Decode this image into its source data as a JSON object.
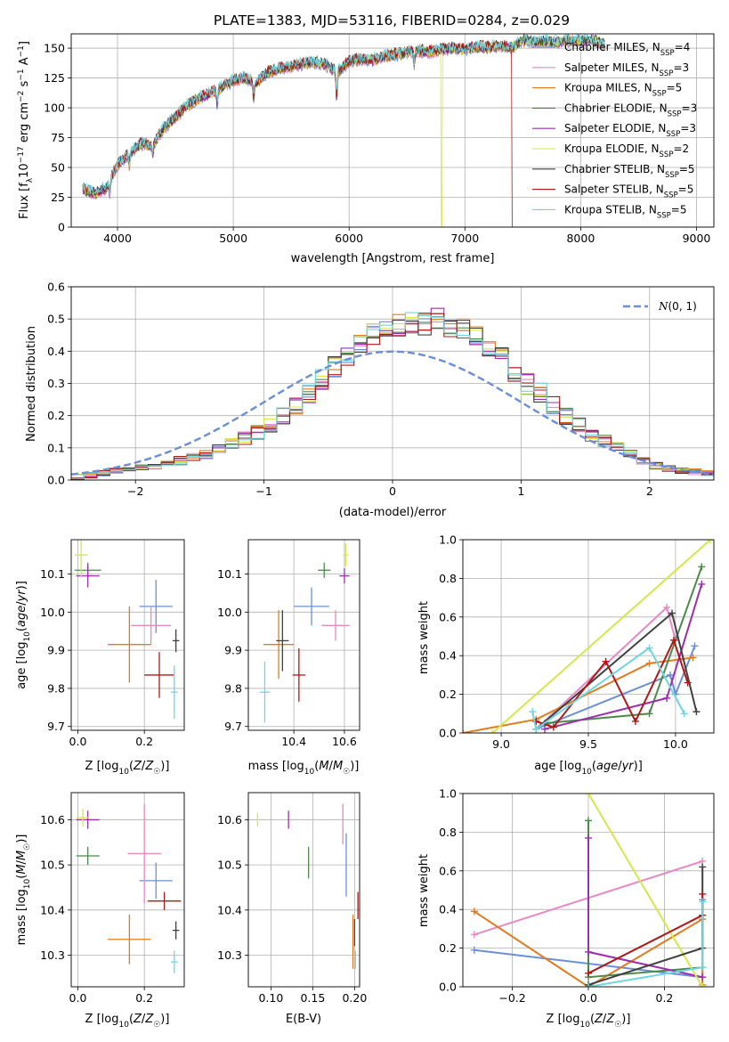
{
  "chart_data": [
    {
      "id": "spectrum",
      "type": "line",
      "title": "PLATE=1383, MJD=53116, FIBERID=0284, z=0.029",
      "xlabel": "wavelength [Angstrom, rest frame]",
      "ylabel": "Flux [f_λ10^-17 erg cm^-2 s^-1 A^-1]",
      "xlim": [
        3600,
        9150
      ],
      "ylim": [
        0,
        162
      ],
      "xticks": [
        4000,
        5000,
        6000,
        7000,
        8000,
        9000
      ],
      "yticks": [
        0,
        25,
        50,
        75,
        100,
        125,
        150
      ],
      "grid": true,
      "legend_position": "upper right",
      "continuum": [
        [
          3700,
          32
        ],
        [
          3800,
          28
        ],
        [
          3900,
          33
        ],
        [
          4000,
          52
        ],
        [
          4100,
          62
        ],
        [
          4200,
          70
        ],
        [
          4300,
          68
        ],
        [
          4400,
          83
        ],
        [
          4500,
          92
        ],
        [
          4600,
          102
        ],
        [
          4700,
          108
        ],
        [
          4800,
          112
        ],
        [
          4900,
          117
        ],
        [
          5000,
          123
        ],
        [
          5100,
          125
        ],
        [
          5200,
          121
        ],
        [
          5300,
          130
        ],
        [
          5400,
          133
        ],
        [
          5500,
          135
        ],
        [
          5600,
          137
        ],
        [
          5700,
          138
        ],
        [
          5800,
          136
        ],
        [
          5900,
          130
        ],
        [
          6000,
          139
        ],
        [
          6100,
          141
        ],
        [
          6200,
          140
        ],
        [
          6300,
          143
        ],
        [
          6400,
          145
        ],
        [
          6500,
          146
        ],
        [
          6600,
          148
        ],
        [
          6700,
          147
        ],
        [
          6800,
          149
        ],
        [
          6900,
          150
        ],
        [
          7000,
          149
        ],
        [
          7100,
          151
        ],
        [
          7200,
          151
        ],
        [
          7300,
          152
        ],
        [
          7400,
          150
        ],
        [
          7500,
          157
        ],
        [
          7600,
          155
        ],
        [
          7700,
          156
        ],
        [
          7800,
          155
        ],
        [
          7900,
          157
        ],
        [
          8000,
          156
        ],
        [
          8100,
          157
        ],
        [
          8200,
          154
        ]
      ],
      "absorption_lines": [
        [
          3933,
          12
        ],
        [
          4102,
          10
        ],
        [
          4304,
          8
        ],
        [
          4861,
          12
        ],
        [
          5175,
          14
        ],
        [
          5892,
          22
        ],
        [
          6563,
          10
        ]
      ],
      "dropouts": [
        {
          "series": "Kroupa ELODIE",
          "wavelength": 6800
        },
        {
          "series": "Salpeter STELIB",
          "wavelength": 7410
        }
      ],
      "series": [
        {
          "name": "Chabrier MILES, N_SSP=4",
          "color": "#6a8fd8"
        },
        {
          "name": "Salpeter MILES, N_SSP=3",
          "color": "#e888c4"
        },
        {
          "name": "Kroupa MILES, N_SSP=5",
          "color": "#e07b1f"
        },
        {
          "name": "Chabrier ELODIE, N_SSP=3",
          "color": "#4b8a4b"
        },
        {
          "name": "Salpeter ELODIE, N_SSP=3",
          "color": "#9b2fb0"
        },
        {
          "name": "Kroupa ELODIE, N_SSP=2",
          "color": "#d4e84a"
        },
        {
          "name": "Chabrier STELIB, N_SSP=5",
          "color": "#404040"
        },
        {
          "name": "Salpeter STELIB, N_SSP=5",
          "color": "#b01818"
        },
        {
          "name": "Kroupa STELIB, N_SSP=5",
          "color": "#6fd6e0"
        }
      ]
    },
    {
      "id": "residuals",
      "type": "histogram",
      "xlabel": "(data-model)/error",
      "ylabel": "Normed distribution",
      "xlim": [
        -2.5,
        2.5
      ],
      "ylim": [
        0,
        0.6
      ],
      "xticks": [
        -2,
        -1,
        0,
        1,
        2
      ],
      "yticks": [
        0.0,
        0.1,
        0.2,
        0.3,
        0.4,
        0.5,
        0.6
      ],
      "grid": true,
      "legend": {
        "label": "N(0,1)",
        "color": "#6a8fd8",
        "position": "upper right"
      },
      "bin_width": 0.1,
      "base_density": [
        0.01,
        0.015,
        0.02,
        0.03,
        0.035,
        0.04,
        0.045,
        0.05,
        0.06,
        0.07,
        0.08,
        0.095,
        0.11,
        0.13,
        0.15,
        0.17,
        0.2,
        0.23,
        0.27,
        0.31,
        0.35,
        0.38,
        0.42,
        0.45,
        0.47,
        0.48,
        0.49,
        0.485,
        0.5,
        0.48,
        0.47,
        0.45,
        0.42,
        0.38,
        0.34,
        0.3,
        0.27,
        0.23,
        0.2,
        0.17,
        0.14,
        0.12,
        0.1,
        0.08,
        0.06,
        0.045,
        0.035,
        0.03,
        0.025,
        0.02
      ]
    },
    {
      "id": "age_vs_Z",
      "type": "scatter",
      "xlabel": "Z [log10(Z/Z☉)]",
      "ylabel": "age [log10(age/yr)]",
      "xlim": [
        -0.02,
        0.32
      ],
      "ylim": [
        9.69,
        10.19
      ],
      "xticks": [
        0.0,
        0.2
      ],
      "yticks": [
        9.7,
        9.8,
        9.9,
        10.0,
        10.1
      ],
      "points": [
        {
          "series": 0,
          "x": 0.235,
          "y": 10.015,
          "xerr": 0.05,
          "yerr": 0.07
        },
        {
          "series": 1,
          "x": 0.22,
          "y": 9.965,
          "xerr": 0.06,
          "yerr": 0.05
        },
        {
          "series": 2,
          "x": 0.155,
          "y": 9.915,
          "xerr": 0.065,
          "yerr": 0.1
        },
        {
          "series": 3,
          "x": 0.03,
          "y": 10.11,
          "xerr": 0.04,
          "yerr": 0.02
        },
        {
          "series": 4,
          "x": 0.03,
          "y": 10.095,
          "xerr": 0.035,
          "yerr": 0.03
        },
        {
          "series": 5,
          "x": 0.01,
          "y": 10.15,
          "xerr": 0.02,
          "yerr": 0.06
        },
        {
          "series": 6,
          "x": 0.295,
          "y": 9.925,
          "xerr": 0.01,
          "yerr": 0.03
        },
        {
          "series": 7,
          "x": 0.245,
          "y": 9.835,
          "xerr": 0.045,
          "yerr": 0.06
        },
        {
          "series": 8,
          "x": 0.29,
          "y": 9.79,
          "xerr": 0.01,
          "yerr": 0.07
        }
      ]
    },
    {
      "id": "age_vs_mass",
      "type": "scatter",
      "xlabel": "mass [log10(M/M☉)]",
      "ylabel": "",
      "xlim": [
        10.22,
        10.66
      ],
      "ylim": [
        9.69,
        10.19
      ],
      "xticks": [
        10.4,
        10.6
      ],
      "yticks": [
        9.7,
        9.8,
        9.9,
        10.0,
        10.1
      ],
      "points": [
        {
          "series": 0,
          "x": 10.47,
          "y": 10.015,
          "xerr": 0.07,
          "yerr": 0.05
        },
        {
          "series": 1,
          "x": 10.565,
          "y": 9.965,
          "xerr": 0.055,
          "yerr": 0.04
        },
        {
          "series": 2,
          "x": 10.34,
          "y": 9.915,
          "xerr": 0.06,
          "yerr": 0.09
        },
        {
          "series": 3,
          "x": 10.52,
          "y": 10.11,
          "xerr": 0.025,
          "yerr": 0.02
        },
        {
          "series": 4,
          "x": 10.6,
          "y": 10.095,
          "xerr": 0.02,
          "yerr": 0.02
        },
        {
          "series": 5,
          "x": 10.605,
          "y": 10.15,
          "xerr": 0.01,
          "yerr": 0.03
        },
        {
          "series": 6,
          "x": 10.355,
          "y": 9.925,
          "xerr": 0.025,
          "yerr": 0.08
        },
        {
          "series": 7,
          "x": 10.42,
          "y": 9.835,
          "xerr": 0.025,
          "yerr": 0.07
        },
        {
          "series": 8,
          "x": 10.285,
          "y": 9.79,
          "xerr": 0.02,
          "yerr": 0.08
        }
      ]
    },
    {
      "id": "massweight_vs_age",
      "type": "line",
      "xlabel": "age [log10(age/yr)]",
      "ylabel": "mass weight",
      "xlim": [
        8.78,
        10.22
      ],
      "ylim": [
        0,
        1.0
      ],
      "xticks": [
        9.0,
        9.5,
        10.0
      ],
      "yticks": [
        0.0,
        0.2,
        0.4,
        0.6,
        0.8,
        1.0
      ],
      "series": [
        {
          "series": 0,
          "points": [
            [
              9.2,
              0.02
            ],
            [
              9.97,
              0.3
            ],
            [
              10.0,
              0.2
            ],
            [
              10.11,
              0.45
            ]
          ]
        },
        {
          "series": 1,
          "points": [
            [
              9.2,
              0.02
            ],
            [
              9.95,
              0.65
            ],
            [
              10.0,
              0.48
            ]
          ]
        },
        {
          "series": 2,
          "points": [
            [
              8.78,
              0.0
            ],
            [
              9.2,
              0.07
            ],
            [
              9.85,
              0.36
            ],
            [
              10.1,
              0.39
            ]
          ]
        },
        {
          "series": 3,
          "points": [
            [
              9.25,
              0.05
            ],
            [
              9.85,
              0.1
            ],
            [
              10.15,
              0.86
            ]
          ]
        },
        {
          "series": 4,
          "points": [
            [
              9.25,
              0.02
            ],
            [
              9.95,
              0.18
            ],
            [
              10.15,
              0.77
            ]
          ]
        },
        {
          "series": 5,
          "points": [
            [
              8.95,
              0.0
            ],
            [
              10.2,
              1.0
            ]
          ]
        },
        {
          "series": 6,
          "points": [
            [
              9.2,
              0.02
            ],
            [
              9.98,
              0.62
            ],
            [
              10.12,
              0.11
            ]
          ]
        },
        {
          "series": 7,
          "points": [
            [
              9.2,
              0.06
            ],
            [
              9.3,
              0.03
            ],
            [
              9.6,
              0.37
            ],
            [
              9.77,
              0.06
            ],
            [
              9.99,
              0.48
            ],
            [
              10.07,
              0.26
            ]
          ]
        },
        {
          "series": 8,
          "points": [
            [
              9.18,
              0.11
            ],
            [
              9.2,
              0.02
            ],
            [
              9.85,
              0.44
            ],
            [
              10.05,
              0.1
            ]
          ]
        }
      ]
    },
    {
      "id": "mass_vs_Z",
      "type": "scatter",
      "xlabel": "Z [log10(Z/Z☉)]",
      "ylabel": "mass [log10(M/M☉)]",
      "xlim": [
        -0.02,
        0.32
      ],
      "ylim": [
        10.23,
        10.66
      ],
      "xticks": [
        0.0,
        0.2
      ],
      "yticks": [
        10.3,
        10.4,
        10.5,
        10.6
      ],
      "points": [
        {
          "series": 0,
          "x": 0.235,
          "y": 10.465,
          "xerr": 0.05,
          "yerr": 0.04
        },
        {
          "series": 1,
          "x": 0.2,
          "y": 10.525,
          "xerr": 0.05,
          "yerr": 0.11
        },
        {
          "series": 2,
          "x": 0.155,
          "y": 10.335,
          "xerr": 0.065,
          "yerr": 0.055
        },
        {
          "series": 3,
          "x": 0.03,
          "y": 10.52,
          "xerr": 0.035,
          "yerr": 0.02
        },
        {
          "series": 4,
          "x": 0.03,
          "y": 10.6,
          "xerr": 0.035,
          "yerr": 0.02
        },
        {
          "series": 5,
          "x": 0.015,
          "y": 10.605,
          "xerr": 0.02,
          "yerr": 0.02
        },
        {
          "series": 6,
          "x": 0.295,
          "y": 10.355,
          "xerr": 0.01,
          "yerr": 0.02
        },
        {
          "series": 7,
          "x": 0.26,
          "y": 10.42,
          "xerr": 0.05,
          "yerr": 0.02
        },
        {
          "series": 8,
          "x": 0.29,
          "y": 10.285,
          "xerr": 0.01,
          "yerr": 0.025
        }
      ]
    },
    {
      "id": "mass_vs_EBV",
      "type": "scatter",
      "xlabel": "E(B-V)",
      "ylabel": "",
      "xlim": [
        0.073,
        0.206
      ],
      "ylim": [
        10.23,
        10.66
      ],
      "xticks": [
        0.1,
        0.15,
        0.2
      ],
      "yticks": [
        10.3,
        10.4,
        10.5,
        10.6
      ],
      "points": [
        {
          "series": 0,
          "x": 0.19,
          "y": 10.5,
          "xerr": 0.0,
          "yerr": 0.07
        },
        {
          "series": 1,
          "x": 0.186,
          "y": 10.59,
          "xerr": 0.0,
          "yerr": 0.045
        },
        {
          "series": 2,
          "x": 0.198,
          "y": 10.33,
          "xerr": 0.0,
          "yerr": 0.06
        },
        {
          "series": 3,
          "x": 0.145,
          "y": 10.505,
          "xerr": 0.0,
          "yerr": 0.035
        },
        {
          "series": 4,
          "x": 0.121,
          "y": 10.6,
          "xerr": 0.0,
          "yerr": 0.02
        },
        {
          "series": 5,
          "x": 0.084,
          "y": 10.6,
          "xerr": 0.0,
          "yerr": 0.015
        },
        {
          "series": 6,
          "x": 0.2,
          "y": 10.35,
          "xerr": 0.0,
          "yerr": 0.03
        },
        {
          "series": 7,
          "x": 0.204,
          "y": 10.41,
          "xerr": 0.0,
          "yerr": 0.03
        },
        {
          "series": 8,
          "x": 0.201,
          "y": 10.29,
          "xerr": 0.0,
          "yerr": 0.02
        }
      ]
    },
    {
      "id": "massweight_vs_Z",
      "type": "line",
      "xlabel": "Z [log10(Z/Z☉)]",
      "ylabel": "mass weight",
      "xlim": [
        -0.33,
        0.33
      ],
      "ylim": [
        0,
        1.0
      ],
      "xticks": [
        -0.2,
        0.0,
        0.2
      ],
      "yticks": [
        0.0,
        0.2,
        0.4,
        0.6,
        0.8,
        1.0
      ],
      "series": [
        {
          "series": 0,
          "points": [
            [
              -0.3,
              0.19
            ],
            [
              0.3,
              0.05
            ],
            [
              0.3,
              0.45
            ]
          ]
        },
        {
          "series": 1,
          "points": [
            [
              -0.3,
              0.27
            ],
            [
              0.3,
              0.65
            ]
          ]
        },
        {
          "series": 2,
          "points": [
            [
              -0.3,
              0.39
            ],
            [
              0.0,
              0.0
            ],
            [
              0.3,
              0.35
            ],
            [
              0.3,
              0.01
            ]
          ]
        },
        {
          "series": 3,
          "points": [
            [
              0.0,
              0.86
            ],
            [
              0.0,
              0.05
            ],
            [
              0.3,
              0.1
            ]
          ]
        },
        {
          "series": 4,
          "points": [
            [
              0.0,
              0.77
            ],
            [
              0.0,
              0.18
            ],
            [
              0.3,
              0.05
            ]
          ]
        },
        {
          "series": 5,
          "points": [
            [
              0.0,
              1.0
            ],
            [
              0.3,
              0.0
            ]
          ]
        },
        {
          "series": 6,
          "points": [
            [
              0.0,
              0.01
            ],
            [
              0.3,
              0.2
            ],
            [
              0.3,
              0.62
            ]
          ]
        },
        {
          "series": 7,
          "points": [
            [
              0.0,
              0.07
            ],
            [
              0.3,
              0.37
            ],
            [
              0.3,
              0.48
            ]
          ]
        },
        {
          "series": 8,
          "points": [
            [
              0.0,
              0.0
            ],
            [
              0.3,
              0.1
            ],
            [
              0.3,
              0.44
            ]
          ]
        }
      ]
    }
  ]
}
